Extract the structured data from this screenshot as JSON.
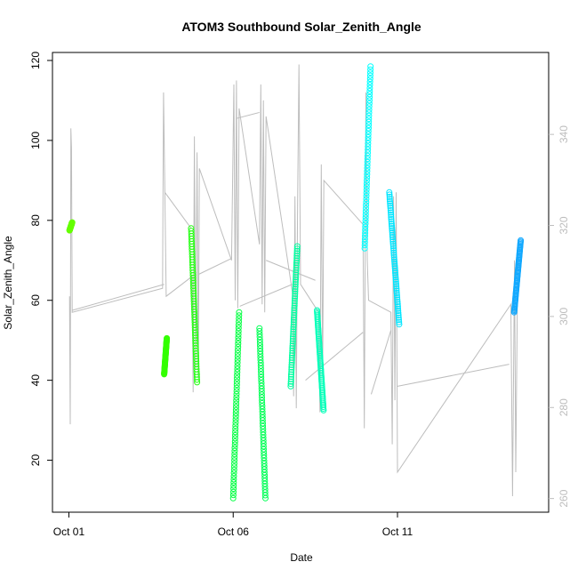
{
  "chart_data": {
    "type": "scatter",
    "title": "ATOM3 Southbound Solar_Zenith_Angle",
    "xlabel": "Date",
    "ylabel": "Solar_Zenith_Angle",
    "x_ticks": [
      "Oct 01",
      "Oct 06",
      "Oct 11"
    ],
    "x_tick_days": [
      1,
      6,
      11
    ],
    "xlim": [
      0.5,
      15.6
    ],
    "ylim": [
      7,
      122
    ],
    "y_ticks": [
      20,
      40,
      60,
      80,
      100,
      120
    ],
    "right_axis": {
      "color": "#bdbdbd",
      "ticks": [
        260,
        280,
        300,
        320,
        340
      ],
      "ylim": [
        257,
        358
      ]
    },
    "grid": false,
    "point_series": [
      {
        "color": "#66ff00",
        "x_start": 1.02,
        "x_end": 1.1,
        "y_start": 77.5,
        "y_end": 79.5
      },
      {
        "color": "#33ff00",
        "x_start": 3.9,
        "x_end": 3.98,
        "y_start": 41.5,
        "y_end": 50.5
      },
      {
        "color": "#22ff10",
        "x_start": 4.72,
        "x_end": 4.9,
        "y_start": 78.0,
        "y_end": 39.5
      },
      {
        "color": "#00ff40",
        "x_start": 6.0,
        "x_end": 6.18,
        "y_start": 10.5,
        "y_end": 57.0
      },
      {
        "color": "#00ff55",
        "x_start": 6.8,
        "x_end": 6.98,
        "y_start": 53.0,
        "y_end": 10.5
      },
      {
        "color": "#00ffa0",
        "x_start": 7.75,
        "x_end": 7.95,
        "y_start": 38.5,
        "y_end": 73.5
      },
      {
        "color": "#00ffb8",
        "x_start": 8.55,
        "x_end": 8.75,
        "y_start": 57.5,
        "y_end": 32.5
      },
      {
        "color": "#00ffff",
        "x_start": 10.0,
        "x_end": 10.18,
        "y_start": 73.0,
        "y_end": 118.5
      },
      {
        "color": "#00e5ff",
        "x_start": 10.75,
        "x_end": 11.05,
        "y_start": 87.0,
        "y_end": 54.0
      },
      {
        "color": "#10a8ff",
        "x_start": 14.55,
        "x_end": 14.75,
        "y_start": 57.0,
        "y_end": 75.0
      }
    ],
    "line_series": {
      "color": "#bdbdbd",
      "name": "",
      "points": [
        [
          1.02,
          61
        ],
        [
          1.04,
          29
        ],
        [
          1.06,
          103
        ],
        [
          1.08,
          98
        ],
        [
          1.1,
          57
        ],
        [
          3.85,
          63
        ],
        [
          3.88,
          112
        ],
        [
          3.92,
          87
        ],
        [
          3.96,
          61
        ],
        [
          4.75,
          66
        ],
        [
          4.78,
          37
        ],
        [
          4.82,
          101
        ],
        [
          4.86,
          43
        ],
        [
          4.9,
          97
        ],
        [
          4.94,
          41
        ],
        [
          4.97,
          93
        ],
        [
          5.95,
          70
        ],
        [
          6.02,
          114
        ],
        [
          6.06,
          60
        ],
        [
          6.1,
          115
        ],
        [
          6.14,
          58
        ],
        [
          6.18,
          108
        ],
        [
          6.8,
          74
        ],
        [
          6.84,
          114
        ],
        [
          6.88,
          59
        ],
        [
          6.92,
          110
        ],
        [
          6.96,
          57
        ],
        [
          7.0,
          106
        ],
        [
          7.8,
          62
        ],
        [
          7.84,
          36
        ],
        [
          7.88,
          86
        ],
        [
          7.92,
          33
        ],
        [
          7.96,
          85
        ],
        [
          8.0,
          119
        ],
        [
          8.05,
          64
        ],
        [
          8.6,
          57
        ],
        [
          8.64,
          32
        ],
        [
          8.68,
          94
        ],
        [
          8.72,
          41
        ],
        [
          8.76,
          90
        ],
        [
          9.95,
          79
        ],
        [
          9.99,
          28
        ],
        [
          10.04,
          112
        ],
        [
          10.08,
          70
        ],
        [
          10.12,
          60
        ],
        [
          10.8,
          57
        ],
        [
          10.84,
          24
        ],
        [
          10.88,
          86
        ],
        [
          10.92,
          35
        ],
        [
          10.96,
          87
        ],
        [
          11.0,
          17
        ],
        [
          14.45,
          59
        ],
        [
          14.5,
          11
        ],
        [
          14.56,
          70
        ],
        [
          14.6,
          17
        ],
        [
          14.66,
          72
        ]
      ],
      "connectors": [
        [
          1.1,
          57.5,
          3.9,
          64.0
        ],
        [
          3.92,
          87.0,
          4.72,
          78.0
        ],
        [
          4.95,
          66.5,
          5.95,
          70.5
        ],
        [
          6.1,
          105.5,
          6.8,
          107.0
        ],
        [
          6.2,
          58.5,
          7.8,
          64.0
        ],
        [
          7.0,
          70.0,
          8.5,
          65.0
        ],
        [
          8.2,
          40.0,
          9.95,
          52.0
        ],
        [
          10.2,
          36.5,
          10.8,
          52.5
        ],
        [
          11.0,
          38.5,
          14.4,
          44.0
        ]
      ]
    }
  }
}
